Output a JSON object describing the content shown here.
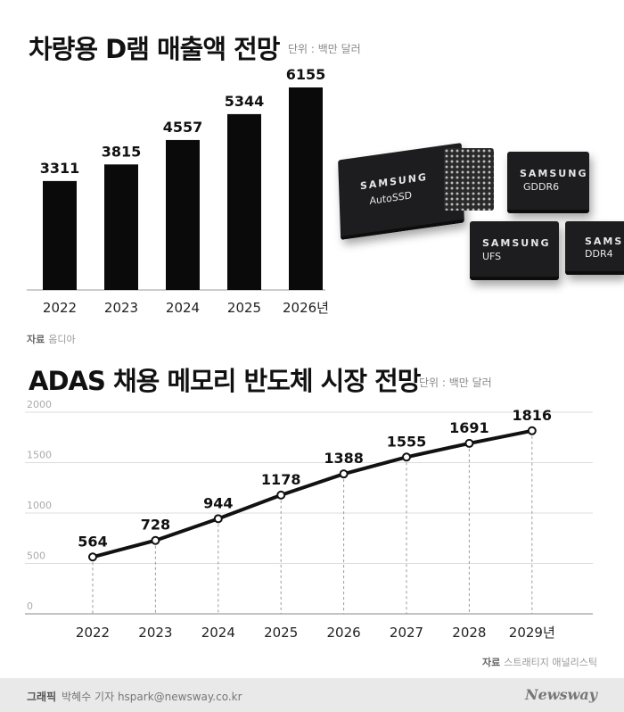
{
  "chart_data": [
    {
      "type": "bar",
      "title": "차량용 D램 매출액 전망",
      "unit_label": "단위 : 백만 달러",
      "categories": [
        "2022",
        "2023",
        "2024",
        "2025",
        "2026년"
      ],
      "values": [
        3311,
        3815,
        4557,
        5344,
        6155
      ],
      "ylim": [
        0,
        7000
      ],
      "grid": false,
      "color": "#0a0a0a",
      "source_label": "자료",
      "source_text": "옴디아"
    },
    {
      "type": "line",
      "title": "ADAS 채용 메모리 반도체 시장 전망",
      "unit_label": "단위 : 백만 달러",
      "categories": [
        "2022",
        "2023",
        "2024",
        "2025",
        "2026",
        "2027",
        "2028",
        "2029년"
      ],
      "values": [
        564,
        728,
        944,
        1178,
        1388,
        1555,
        1691,
        1816
      ],
      "yticks": [
        "0",
        "500",
        "1000",
        "1500",
        "2000"
      ],
      "ylim": [
        0,
        2000
      ],
      "grid": true,
      "color": "#111111",
      "source_label": "자료",
      "source_text": "스트래티지 애널리스틱"
    }
  ],
  "chips": [
    {
      "brand": "SAMSUNG",
      "model": "AutoSSD"
    },
    {
      "brand": "SAMSUNG",
      "model": "GDDR6"
    },
    {
      "brand": "SAMSUNG",
      "model": "UFS"
    },
    {
      "brand": "SAMSUNG",
      "model": "DDR4"
    }
  ],
  "footer": {
    "credit_label": "그래픽",
    "credit_text": "박혜수 기자 hspark@newsway.co.kr",
    "logo": "Newsway"
  }
}
